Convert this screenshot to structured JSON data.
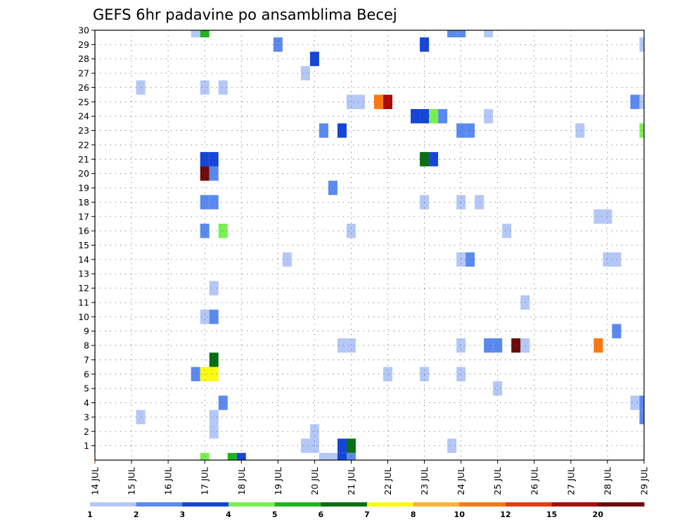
{
  "chart_data": {
    "type": "heatmap",
    "title": "GEFS 6hr padavine po ansamblima Becej",
    "x_tick_labels": [
      "14 JUL",
      "15 JUL",
      "16 JUL",
      "17 JUL",
      "18 JUL",
      "19 JUL",
      "20 JUL",
      "21 JUL",
      "22 JUL",
      "23 JUL",
      "24 JUL",
      "25 JUL",
      "26 JUL",
      "27 JUL",
      "28 JUL",
      "29 JUL"
    ],
    "y_tick_labels": [
      "1",
      "2",
      "3",
      "4",
      "5",
      "6",
      "7",
      "8",
      "9",
      "10",
      "11",
      "12",
      "13",
      "14",
      "15",
      "16",
      "17",
      "18",
      "19",
      "20",
      "21",
      "22",
      "23",
      "24",
      "25",
      "26",
      "27",
      "28",
      "29",
      "30"
    ],
    "xlim": [
      0,
      15
    ],
    "ylim": [
      0,
      30
    ],
    "grid": true,
    "colorbar": {
      "levels": [
        "1",
        "2",
        "3",
        "4",
        "5",
        "6",
        "7",
        "8",
        "10",
        "12",
        "15",
        "20"
      ],
      "colors": [
        "#b4c8f8",
        "#5a8af0",
        "#1446d8",
        "#78f050",
        "#1eb41e",
        "#0a6e14",
        "#fafa14",
        "#fab432",
        "#fa7814",
        "#e63c14",
        "#aa0a0a",
        "#6e0a0a"
      ]
    },
    "cells": [
      {
        "x": 2.75,
        "y": 30,
        "v": 1
      },
      {
        "x": 3.0,
        "y": 30,
        "v": 5
      },
      {
        "x": 9.75,
        "y": 30,
        "v": 2
      },
      {
        "x": 10.0,
        "y": 30,
        "v": 2
      },
      {
        "x": 10.75,
        "y": 30,
        "v": 1
      },
      {
        "x": 5.0,
        "y": 29,
        "v": 2
      },
      {
        "x": 9.0,
        "y": 29,
        "v": 3
      },
      {
        "x": 15.0,
        "y": 29,
        "v": 1
      },
      {
        "x": 6.0,
        "y": 28,
        "v": 3
      },
      {
        "x": 5.75,
        "y": 27,
        "v": 1
      },
      {
        "x": 1.25,
        "y": 26,
        "v": 1
      },
      {
        "x": 3.0,
        "y": 26,
        "v": 1
      },
      {
        "x": 3.5,
        "y": 26,
        "v": 1
      },
      {
        "x": 7.0,
        "y": 25,
        "v": 1
      },
      {
        "x": 7.25,
        "y": 25,
        "v": 1
      },
      {
        "x": 7.75,
        "y": 25,
        "v": 10
      },
      {
        "x": 8.0,
        "y": 25,
        "v": 15
      },
      {
        "x": 14.75,
        "y": 25,
        "v": 2
      },
      {
        "x": 15.0,
        "y": 25,
        "v": 1
      },
      {
        "x": 8.75,
        "y": 24,
        "v": 3
      },
      {
        "x": 9.0,
        "y": 24,
        "v": 3
      },
      {
        "x": 9.25,
        "y": 24,
        "v": 4
      },
      {
        "x": 9.5,
        "y": 24,
        "v": 2
      },
      {
        "x": 10.75,
        "y": 24,
        "v": 1
      },
      {
        "x": 6.25,
        "y": 23,
        "v": 2
      },
      {
        "x": 6.75,
        "y": 23,
        "v": 3
      },
      {
        "x": 10.0,
        "y": 23,
        "v": 2
      },
      {
        "x": 10.25,
        "y": 23,
        "v": 2
      },
      {
        "x": 13.25,
        "y": 23,
        "v": 1
      },
      {
        "x": 15.0,
        "y": 23,
        "v": 4
      },
      {
        "x": 3.0,
        "y": 21,
        "v": 3
      },
      {
        "x": 3.25,
        "y": 21,
        "v": 3
      },
      {
        "x": 9.0,
        "y": 21,
        "v": 6
      },
      {
        "x": 9.25,
        "y": 21,
        "v": 3
      },
      {
        "x": 3.0,
        "y": 20,
        "v": 20
      },
      {
        "x": 3.25,
        "y": 20,
        "v": 2
      },
      {
        "x": 6.5,
        "y": 19,
        "v": 2
      },
      {
        "x": 3.0,
        "y": 18,
        "v": 2
      },
      {
        "x": 3.25,
        "y": 18,
        "v": 2
      },
      {
        "x": 9.0,
        "y": 18,
        "v": 1
      },
      {
        "x": 10.0,
        "y": 18,
        "v": 1
      },
      {
        "x": 10.5,
        "y": 18,
        "v": 1
      },
      {
        "x": 13.75,
        "y": 17,
        "v": 1
      },
      {
        "x": 14.0,
        "y": 17,
        "v": 1
      },
      {
        "x": 3.0,
        "y": 16,
        "v": 2
      },
      {
        "x": 3.5,
        "y": 16,
        "v": 4
      },
      {
        "x": 7.0,
        "y": 16,
        "v": 1
      },
      {
        "x": 11.25,
        "y": 16,
        "v": 1
      },
      {
        "x": 5.25,
        "y": 14,
        "v": 1
      },
      {
        "x": 10.0,
        "y": 14,
        "v": 1
      },
      {
        "x": 10.25,
        "y": 14,
        "v": 2
      },
      {
        "x": 14.0,
        "y": 14,
        "v": 1
      },
      {
        "x": 14.25,
        "y": 14,
        "v": 1
      },
      {
        "x": 3.25,
        "y": 12,
        "v": 1
      },
      {
        "x": 11.75,
        "y": 11,
        "v": 1
      },
      {
        "x": 3.0,
        "y": 10,
        "v": 1
      },
      {
        "x": 3.25,
        "y": 10,
        "v": 2
      },
      {
        "x": 14.25,
        "y": 9,
        "v": 2
      },
      {
        "x": 6.75,
        "y": 8,
        "v": 1
      },
      {
        "x": 7.0,
        "y": 8,
        "v": 1
      },
      {
        "x": 10.0,
        "y": 8,
        "v": 1
      },
      {
        "x": 10.75,
        "y": 8,
        "v": 2
      },
      {
        "x": 11.0,
        "y": 8,
        "v": 2
      },
      {
        "x": 11.5,
        "y": 8,
        "v": 20
      },
      {
        "x": 11.75,
        "y": 8,
        "v": 1
      },
      {
        "x": 13.75,
        "y": 8,
        "v": 10
      },
      {
        "x": 3.25,
        "y": 7,
        "v": 6
      },
      {
        "x": 8.0,
        "y": 6,
        "v": 1
      },
      {
        "x": 2.75,
        "y": 6,
        "v": 2
      },
      {
        "x": 3.0,
        "y": 6,
        "v": 7
      },
      {
        "x": 3.25,
        "y": 6,
        "v": 7
      },
      {
        "x": 9.0,
        "y": 6,
        "v": 1
      },
      {
        "x": 10.0,
        "y": 6,
        "v": 1
      },
      {
        "x": 11.0,
        "y": 5,
        "v": 1
      },
      {
        "x": 3.5,
        "y": 4,
        "v": 2
      },
      {
        "x": 14.75,
        "y": 4,
        "v": 1
      },
      {
        "x": 15.0,
        "y": 4,
        "v": 2
      },
      {
        "x": 1.25,
        "y": 3,
        "v": 1
      },
      {
        "x": 3.25,
        "y": 3,
        "v": 1
      },
      {
        "x": 15.0,
        "y": 3,
        "v": 2
      },
      {
        "x": 3.25,
        "y": 2,
        "v": 1
      },
      {
        "x": 6.0,
        "y": 2,
        "v": 1
      },
      {
        "x": 5.75,
        "y": 1,
        "v": 1
      },
      {
        "x": 6.0,
        "y": 1,
        "v": 1
      },
      {
        "x": 6.75,
        "y": 1,
        "v": 3
      },
      {
        "x": 7.0,
        "y": 1,
        "v": 6
      },
      {
        "x": 9.75,
        "y": 1,
        "v": 1
      },
      {
        "x": 6.25,
        "y": 0,
        "v": 1
      },
      {
        "x": 6.5,
        "y": 0,
        "v": 1
      },
      {
        "x": 6.75,
        "y": 0,
        "v": 3
      },
      {
        "x": 7.0,
        "y": 0,
        "v": 2
      },
      {
        "x": 3.0,
        "y": 0,
        "v": 4
      },
      {
        "x": 3.75,
        "y": 0,
        "v": 5
      },
      {
        "x": 4.0,
        "y": 0,
        "v": 3
      }
    ]
  }
}
